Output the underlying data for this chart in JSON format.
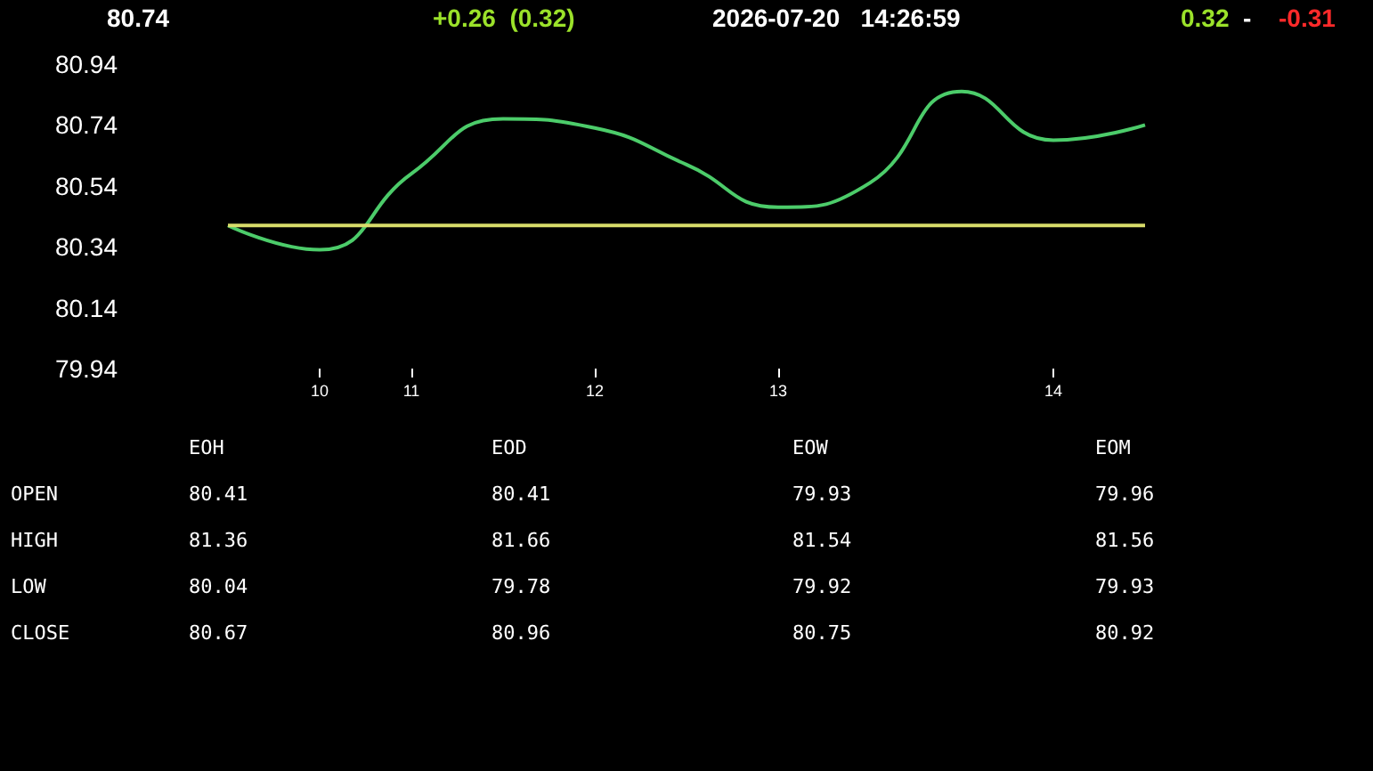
{
  "chart_data": {
    "type": "line",
    "title": "80.74",
    "categories": [
      null,
      "10",
      "11",
      null,
      "12",
      null,
      "13",
      null,
      null,
      "14",
      null
    ],
    "series": [
      {
        "color": "#4ccc6a",
        "values": [
          80.41,
          80.33,
          80.58,
          80.76,
          80.73,
          80.61,
          80.47,
          80.55,
          80.85,
          80.69,
          80.74
        ]
      },
      {
        "color": "#d8dc6a",
        "values": [
          80.41,
          80.41,
          80.41,
          80.41,
          80.41,
          80.41,
          80.41,
          80.41,
          80.41,
          80.41,
          80.41
        ]
      }
    ],
    "ylim": [
      79.94,
      80.94
    ],
    "yticks": [
      79.94,
      80.14,
      80.34,
      80.54,
      80.74,
      80.94
    ],
    "grid": false,
    "marker": "none",
    "line_style": "solid",
    "annotations": [
      "+0.26  (0.32)",
      "2026-07-20   14:26:59",
      "0.32",
      "-",
      "-0.31",
      "EOH",
      "EOD",
      "EOW",
      "EOM",
      "OPEN",
      "80.41",
      "80.41",
      "79.93",
      "79.96",
      "HIGH",
      "81.36",
      "81.66",
      "81.54",
      "81.56",
      "LOW",
      "80.04",
      "79.78",
      "79.92",
      "79.93",
      "CLOSE",
      "80.67",
      "80.96",
      "80.75",
      "80.92"
    ]
  }
}
